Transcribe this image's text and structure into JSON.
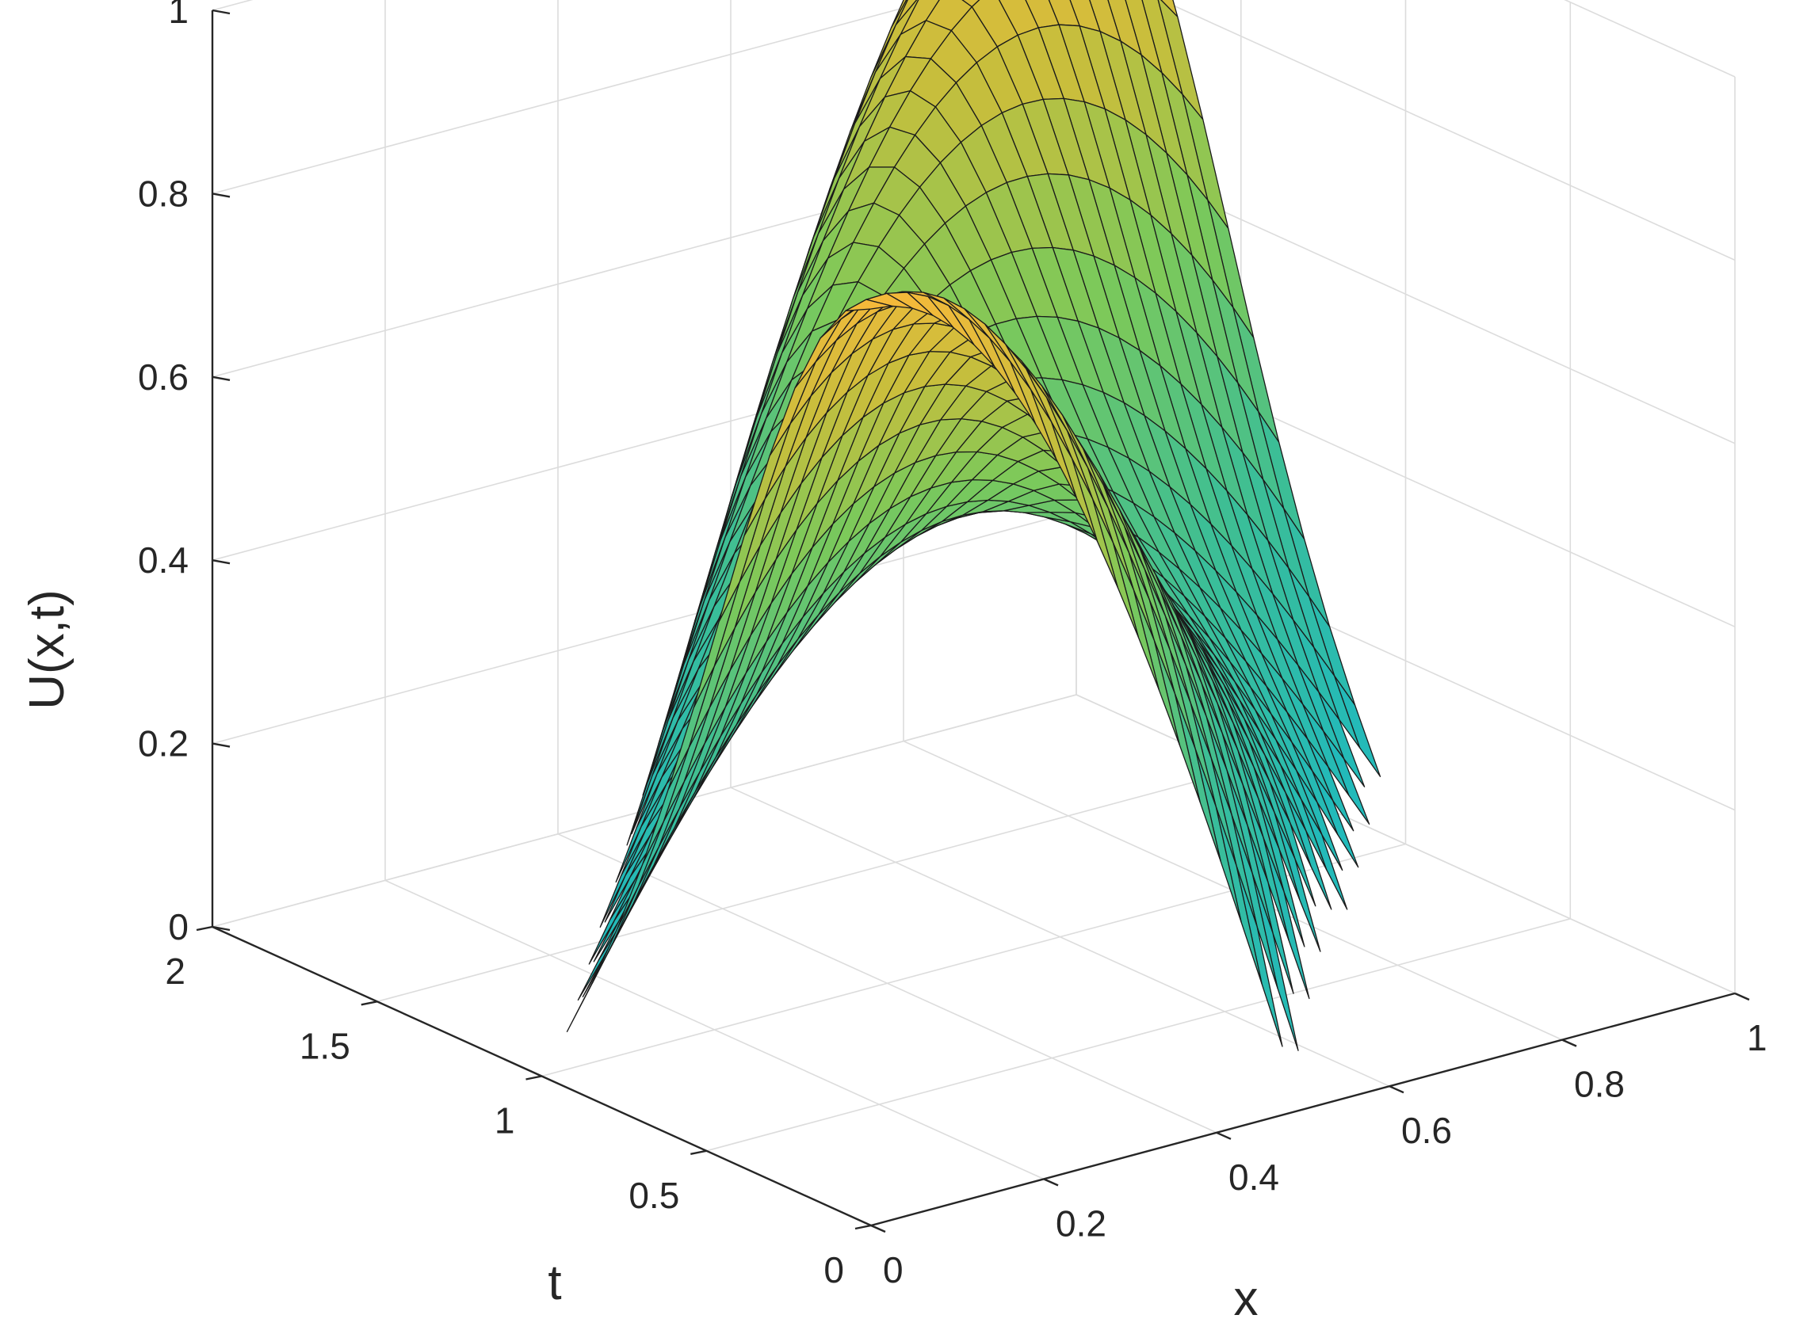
{
  "chart_data": {
    "type": "surface",
    "xlabel": "x",
    "ylabel": "t",
    "zlabel": "U(x,t)",
    "xlim": [
      0,
      1
    ],
    "ylim": [
      0,
      2
    ],
    "zlim": [
      0,
      1
    ],
    "x_ticks": [
      {
        "value": 0,
        "label": "0"
      },
      {
        "value": 0.2,
        "label": "0.2"
      },
      {
        "value": 0.4,
        "label": "0.4"
      },
      {
        "value": 0.6,
        "label": "0.6"
      },
      {
        "value": 0.8,
        "label": "0.8"
      },
      {
        "value": 1,
        "label": "1"
      }
    ],
    "y_ticks": [
      {
        "value": 0,
        "label": "0"
      },
      {
        "value": 0.5,
        "label": "0.5"
      },
      {
        "value": 1,
        "label": "1"
      },
      {
        "value": 1.5,
        "label": "1.5"
      },
      {
        "value": 2,
        "label": "2"
      }
    ],
    "z_ticks": [
      {
        "value": 0,
        "label": "0"
      },
      {
        "value": 0.2,
        "label": "0.2"
      },
      {
        "value": 0.4,
        "label": "0.4"
      },
      {
        "value": 0.6,
        "label": "0.6"
      },
      {
        "value": 0.8,
        "label": "0.8"
      },
      {
        "value": 1,
        "label": "1"
      }
    ],
    "grid": true,
    "colormap": "parula",
    "colors": {
      "low": "#18b8c8",
      "mid": "#7cc95a",
      "high": "#f6b93a",
      "edge": "#1a1a1a",
      "grid": "#dcdcdc",
      "axis": "#262626"
    },
    "surface_function": "U(x,t) = max(0, cos(pi*(x - t/2))) * (0.75 + 0.25*cos(pi*t)), shown where U > 0.045",
    "x_samples": 42,
    "t_samples": 26,
    "peaks": [
      {
        "x": 0.0,
        "t": 0.0,
        "U": 1.0
      },
      {
        "x": 0.5,
        "t": 1.0,
        "U": 0.5
      },
      {
        "x": 1.0,
        "t": 2.0,
        "U": 1.0
      }
    ]
  }
}
